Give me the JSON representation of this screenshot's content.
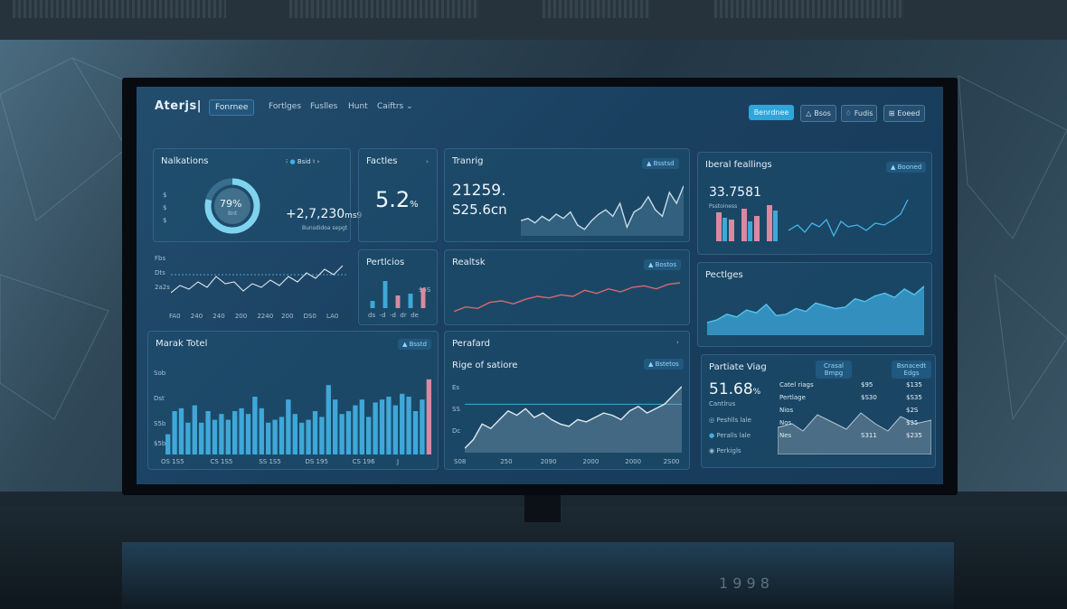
{
  "theme": {
    "accent": "#2fa6da",
    "series_blue": "#3fa8d8",
    "series_pink": "#d98aa0",
    "series_red": "#d9686b"
  },
  "header": {
    "logo": "Aterjs|",
    "nav": [
      "Fonrnee",
      "Fortlges",
      "Fuslles",
      "Hunt",
      "Caiftrs"
    ],
    "nav_caret": "⌄",
    "buttons": [
      {
        "label": "Benrdnee",
        "icon": ""
      },
      {
        "label": "Bsos",
        "icon": "triangle-icon"
      },
      {
        "label": "Fudis",
        "icon": "bell-icon"
      },
      {
        "label": "Eoeed",
        "icon": "lock-icon"
      }
    ]
  },
  "cards": {
    "notifications": {
      "title": "Nalkations",
      "controls": "Bsid",
      "gauge_label": "79%",
      "gauge_sub": "Bnt",
      "gauge_value": 0.79,
      "value": "+2,7,230",
      "value_suffix": "ms9",
      "caption": "Bunsdidoa sepgt",
      "side_icons": [
        "$",
        "$",
        "$"
      ]
    },
    "facties": {
      "title": "Factles",
      "value": "5.2",
      "suffix": "%"
    },
    "training": {
      "title": "Tranrig",
      "chip": "Bsstsd",
      "value1": "21259.",
      "value2": "S25.6cn"
    },
    "total_trends": {
      "title": "Iberal feallings",
      "chip": "Booned",
      "value": "33.7581",
      "sub": "Psstoiness"
    },
    "mini_line": {
      "ticks_y": [
        "Fbs",
        "Dts",
        "2a2s"
      ],
      "ticks_x": [
        "FA0",
        "240",
        "240",
        "200",
        "2240",
        "200",
        "DS0",
        "LA0"
      ]
    },
    "portfolios": {
      "title": "Pertlcios",
      "caption": "$5S",
      "ticks_x": [
        "ds",
        "-d",
        "-d",
        "dr",
        "de"
      ]
    },
    "realtask": {
      "title": "Realtsk",
      "chip": "Bostos"
    },
    "postings": {
      "title": "Pectlges"
    },
    "market_total": {
      "title": "Marak Totel",
      "chip": "Bsstd",
      "ticks_y": [
        "Sob",
        "Dst",
        "S5b",
        "$5b"
      ],
      "ticks_x": [
        "OS 1S5",
        "CS 1S5",
        "SS 1S5",
        "DS 195",
        "CS 196",
        "J"
      ]
    },
    "perafard": {
      "title": "Perafard"
    },
    "rise": {
      "title": "Rige of satiore",
      "chip": "Bstetos",
      "ticks_y": [
        "Es",
        "SS",
        "Dc"
      ],
      "ticks_x": [
        "S08",
        "250",
        "2090",
        "2000",
        "2000",
        "2S00"
      ]
    },
    "portable": {
      "title": "Partiate Viag",
      "value": "51.68",
      "suffix": "%",
      "sub": "Cantlrus",
      "col_headers": [
        "Crasal Bmpg",
        "Bsnacedt Edgs"
      ],
      "legend": [
        "Peshlls lale",
        "Peralls lale",
        "Perkigls"
      ],
      "rows": [
        {
          "label": "Catel riags",
          "a": "$95",
          "b": "$135"
        },
        {
          "label": "Pertlage",
          "a": "$S30",
          "b": "$S35"
        },
        {
          "label": "Nios",
          "a": "",
          "b": "$2S"
        },
        {
          "label": "Nos",
          "a": "",
          "b": "$35"
        },
        {
          "label": "Nes",
          "a": "S311",
          "b": "$235"
        }
      ]
    }
  },
  "chart_data": [
    {
      "type": "bar",
      "title": "Marak Totel",
      "values": [
        14,
        30,
        32,
        22,
        34,
        22,
        30,
        24,
        28,
        24,
        30,
        32,
        28,
        40,
        32,
        22,
        24,
        26,
        38,
        28,
        22,
        24,
        30,
        26,
        48,
        38,
        28,
        30,
        34,
        38,
        26,
        36,
        38,
        40,
        34,
        42,
        40,
        30,
        38,
        52
      ],
      "highlight_last": true,
      "ylim": [
        0,
        60
      ]
    },
    {
      "type": "line",
      "title": "Rige of satiore",
      "values": [
        4,
        12,
        26,
        22,
        30,
        38,
        34,
        40,
        32,
        36,
        30,
        26,
        24,
        30,
        28,
        32,
        36,
        34,
        30,
        38,
        42,
        36,
        40,
        44,
        52,
        60
      ],
      "ylim": [
        0,
        64
      ]
    },
    {
      "type": "line",
      "title": "Realtsk",
      "values": [
        10,
        16,
        14,
        22,
        24,
        20,
        26,
        30,
        28,
        32,
        30,
        38,
        34,
        40,
        36,
        42,
        44,
        40,
        46,
        48
      ],
      "ylim": [
        0,
        60
      ]
    },
    {
      "type": "area",
      "title": "Pectlges",
      "values": [
        18,
        22,
        30,
        26,
        36,
        32,
        44,
        28,
        30,
        38,
        34,
        46,
        42,
        38,
        40,
        52,
        48,
        56,
        60,
        54,
        66,
        58,
        70
      ],
      "ylim": [
        0,
        80
      ]
    },
    {
      "type": "line",
      "title": "Tranrig",
      "values": [
        14,
        16,
        12,
        18,
        14,
        20,
        16,
        22,
        10,
        6,
        14,
        20,
        24,
        18,
        30,
        8,
        22,
        26,
        36,
        24,
        18,
        40,
        30,
        46
      ],
      "ylim": [
        0,
        50
      ]
    },
    {
      "type": "bar",
      "title": "Pertlcios",
      "values": [
        8,
        30,
        14,
        16,
        22
      ],
      "ylim": [
        0,
        40
      ]
    }
  ]
}
